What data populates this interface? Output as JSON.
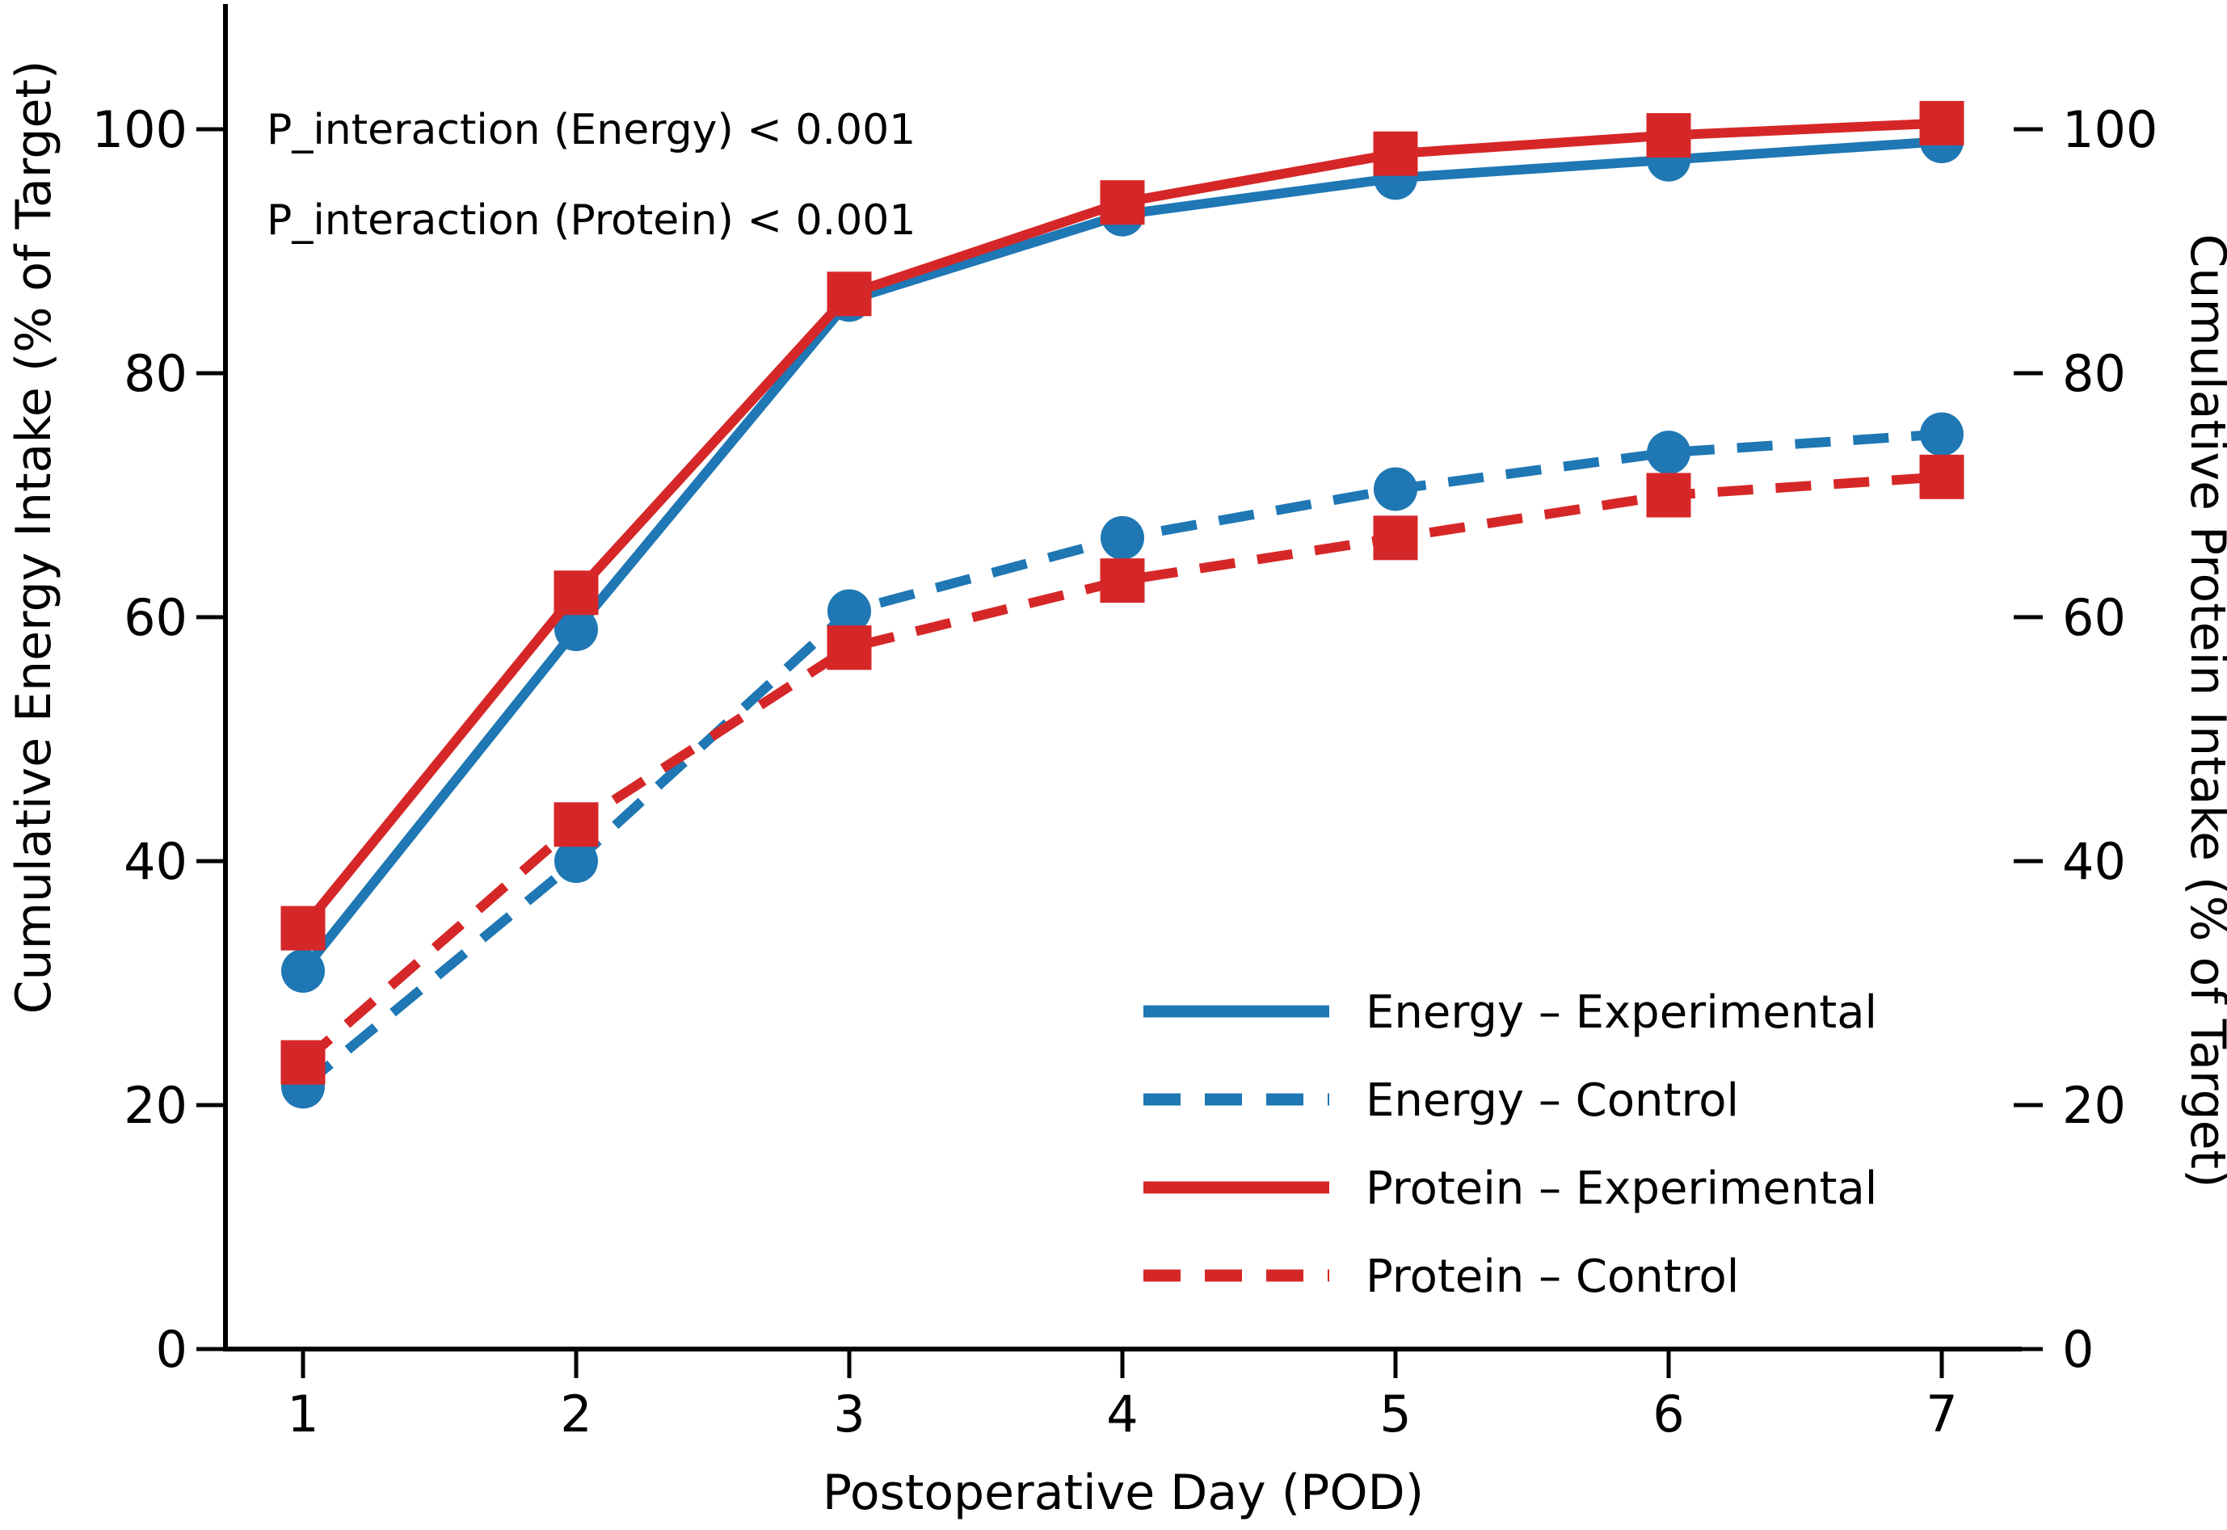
{
  "figure": {
    "background_color": "#ffffff",
    "text_color": "#000000",
    "annotations": {
      "line1": "P_interaction (Energy) < 0.001",
      "line2": "P_interaction (Protein) < 0.001"
    }
  },
  "chart_data": {
    "type": "line",
    "x": [
      1,
      2,
      3,
      4,
      5,
      6,
      7
    ],
    "xlabel": "Postoperative Day (POD)",
    "ylabel_left": "Cumulative Energy Intake (% of Target)",
    "ylabel_right": "Cumulative Protein Intake (% of Target)",
    "x_ticks": [
      1,
      2,
      3,
      4,
      5,
      6,
      7
    ],
    "y_ticks_left": [
      0,
      20,
      40,
      60,
      80,
      100
    ],
    "y_ticks_right": [
      0,
      20,
      40,
      60,
      80,
      100
    ],
    "xlim": [
      0.7,
      7.3
    ],
    "ylim": [
      0,
      110
    ],
    "grid": false,
    "legend_position": "lower right",
    "annotations": [
      "P_interaction (Energy) < 0.001",
      "P_interaction (Protein) < 0.001"
    ],
    "series": [
      {
        "name": "Energy – Experimental",
        "key": "energy-experimental",
        "color": "#1f77b4",
        "line_style": "solid",
        "marker": "circle",
        "values": [
          31,
          59,
          86,
          93,
          96,
          97.5,
          99
        ]
      },
      {
        "name": "Energy – Control",
        "key": "energy-control",
        "color": "#1f77b4",
        "line_style": "dashed",
        "marker": "circle",
        "values": [
          21.5,
          40,
          60.5,
          66.5,
          70.5,
          73.5,
          75
        ]
      },
      {
        "name": "Protein – Experimental",
        "key": "protein-experimental",
        "color": "#d62728",
        "line_style": "solid",
        "marker": "square",
        "values": [
          34.5,
          62,
          86.5,
          94,
          98,
          99.5,
          100.5
        ]
      },
      {
        "name": "Protein – Control",
        "key": "protein-control",
        "color": "#d62728",
        "line_style": "dashed",
        "marker": "square",
        "values": [
          23.5,
          43,
          57.5,
          63,
          66.5,
          70,
          71.5
        ]
      }
    ]
  }
}
